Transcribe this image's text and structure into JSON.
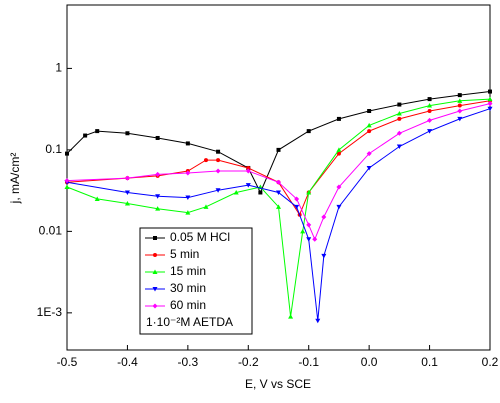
{
  "chart_data": {
    "type": "line",
    "x_label": "E, V vs SCE",
    "y_label": "j, mA/cm²",
    "log_y": true,
    "grid": false,
    "legend_position": "lower left",
    "annotation": "1·10⁻²M AETDA",
    "xlim": [
      -0.5,
      0.2
    ],
    "xticks": [
      -0.5,
      -0.4,
      -0.3,
      -0.2,
      -0.1,
      {
        "value": 0,
        "label": "0.0"
      },
      0.1,
      0.2
    ],
    "ylim": [
      0.00035,
      6
    ],
    "yticks": [
      {
        "value": 0.001,
        "label": "1E-3"
      },
      0.01,
      0.1,
      1
    ],
    "series": [
      {
        "name": "0.05 M HCl",
        "color": "#000000",
        "marker": "square",
        "x": [
          -0.5,
          -0.47,
          -0.45,
          -0.4,
          -0.35,
          -0.3,
          -0.25,
          -0.2,
          -0.18,
          -0.15,
          -0.1,
          -0.05,
          0,
          0.05,
          0.1,
          0.15,
          0.2
        ],
        "values": [
          0.09,
          0.15,
          0.17,
          0.16,
          0.14,
          0.12,
          0.095,
          0.06,
          0.03,
          0.1,
          0.17,
          0.24,
          0.3,
          0.36,
          0.42,
          0.47,
          0.52
        ]
      },
      {
        "name": "5 min",
        "color": "#ff0000",
        "marker": "circle",
        "x": [
          -0.5,
          -0.4,
          -0.35,
          -0.3,
          -0.27,
          -0.25,
          -0.2,
          -0.15,
          -0.115,
          -0.1,
          -0.05,
          0,
          0.05,
          0.1,
          0.15,
          0.2
        ],
        "values": [
          0.04,
          0.045,
          0.048,
          0.055,
          0.075,
          0.075,
          0.06,
          0.04,
          0.016,
          0.03,
          0.09,
          0.17,
          0.24,
          0.3,
          0.35,
          0.4
        ]
      },
      {
        "name": "15 min",
        "color": "#00ff00",
        "marker": "triangle",
        "x": [
          -0.5,
          -0.45,
          -0.4,
          -0.35,
          -0.3,
          -0.27,
          -0.22,
          -0.18,
          -0.15,
          -0.13,
          -0.11,
          -0.1,
          -0.05,
          0,
          0.05,
          0.1,
          0.15,
          0.2
        ],
        "values": [
          0.035,
          0.025,
          0.022,
          0.019,
          0.017,
          0.02,
          0.03,
          0.035,
          0.02,
          0.0009,
          0.01,
          0.03,
          0.1,
          0.2,
          0.28,
          0.35,
          0.4,
          0.42
        ]
      },
      {
        "name": "30 min",
        "color": "#0000ff",
        "marker": "triangle-down",
        "x": [
          -0.5,
          -0.4,
          -0.35,
          -0.3,
          -0.25,
          -0.2,
          -0.15,
          -0.12,
          -0.1,
          -0.085,
          -0.075,
          -0.05,
          0,
          0.05,
          0.1,
          0.15,
          0.2
        ],
        "values": [
          0.04,
          0.03,
          0.027,
          0.026,
          0.032,
          0.037,
          0.03,
          0.02,
          0.008,
          0.0008,
          0.005,
          0.02,
          0.06,
          0.11,
          0.17,
          0.24,
          0.32
        ]
      },
      {
        "name": "60 min",
        "color": "#ff00ff",
        "marker": "diamond",
        "x": [
          -0.5,
          -0.4,
          -0.35,
          -0.3,
          -0.25,
          -0.2,
          -0.15,
          -0.12,
          -0.1,
          -0.09,
          -0.075,
          -0.05,
          0,
          0.05,
          0.1,
          0.15,
          0.2
        ],
        "values": [
          0.042,
          0.045,
          0.05,
          0.052,
          0.055,
          0.055,
          0.04,
          0.025,
          0.012,
          0.008,
          0.015,
          0.035,
          0.09,
          0.16,
          0.23,
          0.3,
          0.37
        ]
      }
    ]
  }
}
